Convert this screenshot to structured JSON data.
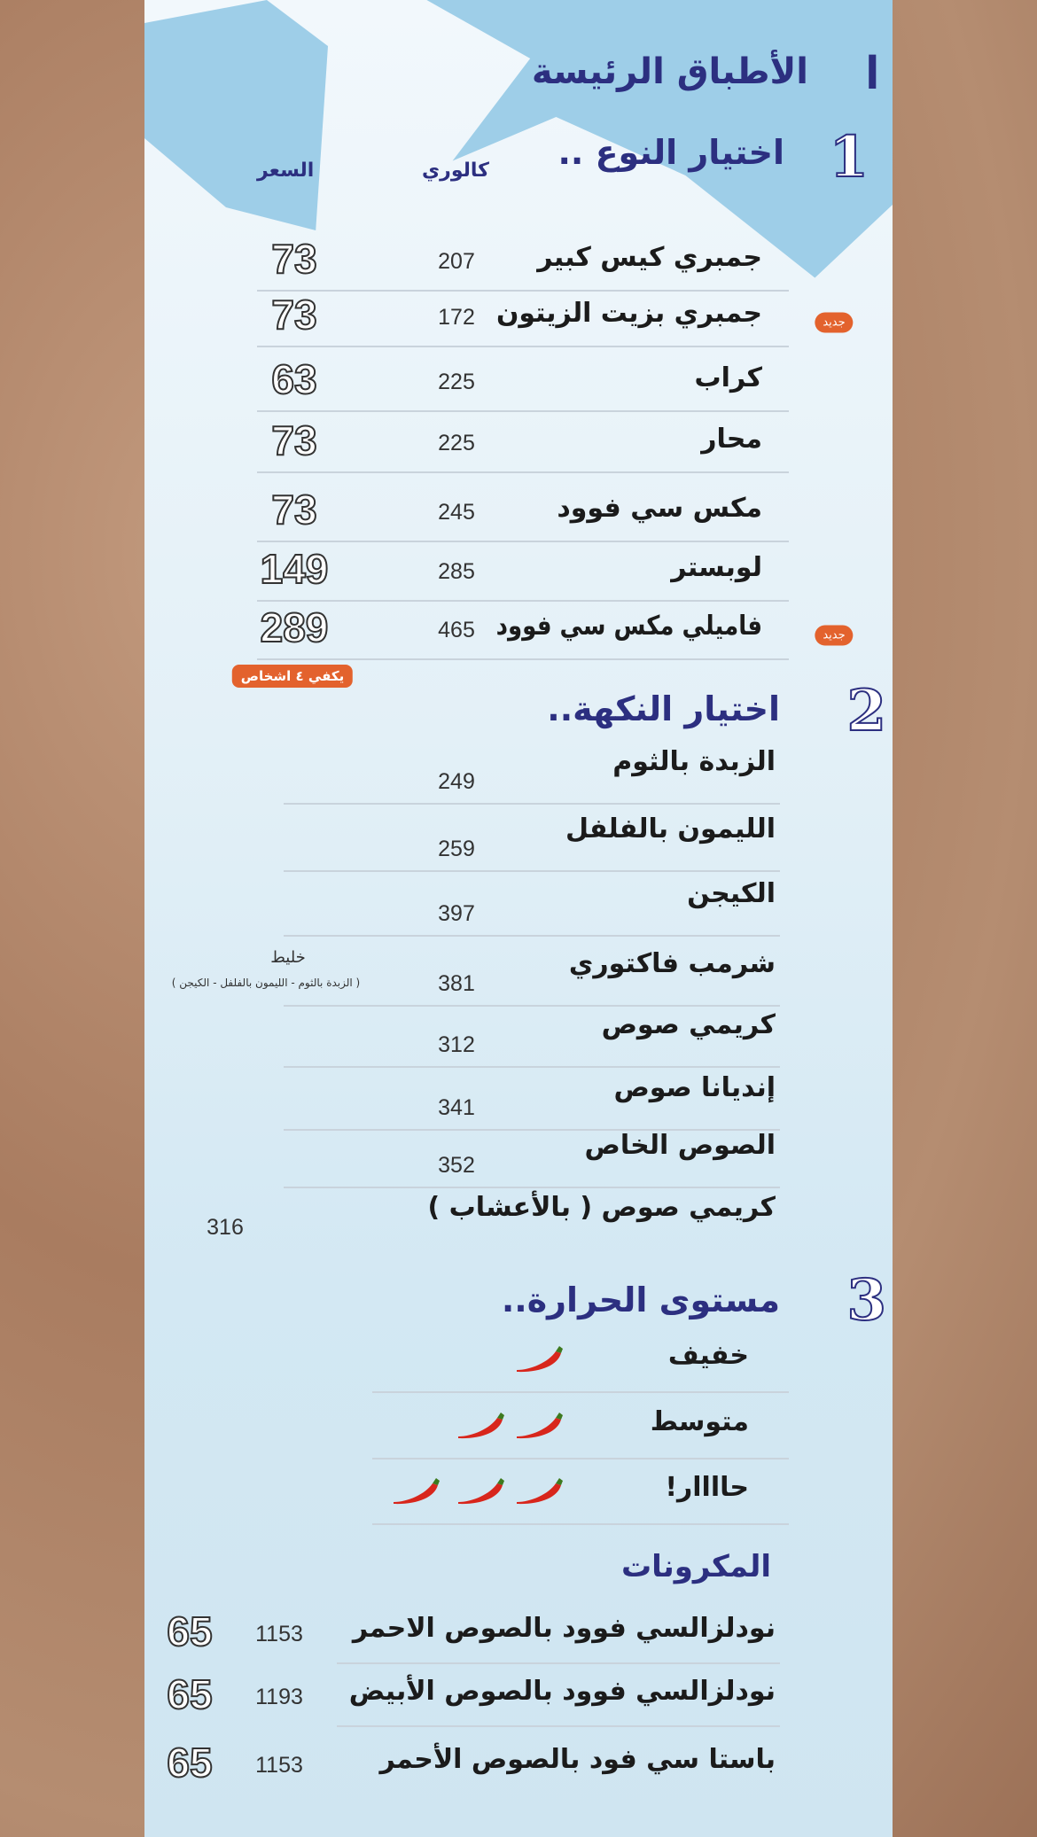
{
  "title": "الأطباق الرئيسة",
  "title_number": "I",
  "colors": {
    "navy": "#2c2f80",
    "badge": "#e3622d",
    "chili": "#d8261c"
  },
  "section1": {
    "number": "1",
    "title": "اختيار النوع ..",
    "col_price": "السعر",
    "col_calories": "كالوري",
    "items": [
      {
        "name": "جمبري كيس كبير",
        "calories": "207",
        "price": "73"
      },
      {
        "name": "جمبري بزيت الزيتون",
        "calories": "172",
        "price": "73",
        "badge": "جديد"
      },
      {
        "name": "كراب",
        "calories": "225",
        "price": "63"
      },
      {
        "name": "محار",
        "calories": "225",
        "price": "73"
      },
      {
        "name": "مكس سي فوود",
        "calories": "245",
        "price": "73"
      },
      {
        "name": "لوبستر",
        "calories": "285",
        "price": "149"
      },
      {
        "name": "فاميلي مكس سي فوود",
        "calories": "465",
        "price": "289",
        "badge": "جديد"
      }
    ],
    "serves_note": "يكفي ٤ اشخاص"
  },
  "section2": {
    "number": "2",
    "title": "اختيار النكهة..",
    "items": [
      {
        "name": "الزبدة بالثوم",
        "calories": "249"
      },
      {
        "name": "الليمون بالفلفل",
        "calories": "259"
      },
      {
        "name": "الكيجن",
        "calories": "397"
      },
      {
        "name": "شرمب فاكتوري",
        "calories": "381",
        "note_title": "خليط",
        "note": "( الزبدة بالثوم - الليمون بالفلفل - الكيجن )"
      },
      {
        "name": "كريمي صوص",
        "calories": "312"
      },
      {
        "name": "إنديانا صوص",
        "calories": "341"
      },
      {
        "name": "الصوص الخاص",
        "calories": "352"
      },
      {
        "name": "كريمي صوص ( بالأعشاب )",
        "calories": "316"
      }
    ]
  },
  "section3": {
    "number": "3",
    "title": "مستوى الحرارة..",
    "levels": [
      {
        "name": "خفيف",
        "chilies": 1
      },
      {
        "name": "متوسط",
        "chilies": 2
      },
      {
        "name": "حاااار!",
        "chilies": 3
      }
    ]
  },
  "pasta": {
    "title": "المكرونات",
    "items": [
      {
        "name": "نودلزالسي فوود بالصوص الاحمر",
        "calories": "1153",
        "price": "65"
      },
      {
        "name": "نودلزالسي فوود بالصوص الأبيض",
        "calories": "1193",
        "price": "65"
      },
      {
        "name": "باستا سي فود بالصوص الأحمر",
        "calories": "1153",
        "price": "65"
      }
    ]
  }
}
